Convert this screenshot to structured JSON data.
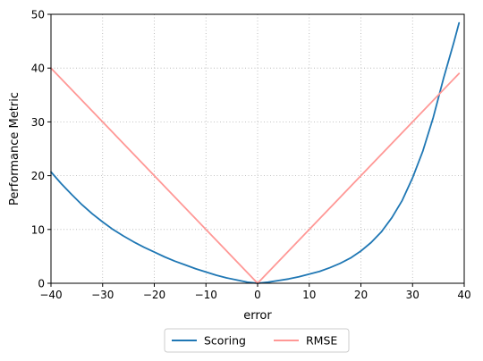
{
  "chart_data": {
    "type": "line",
    "xlabel": "error",
    "ylabel": "Performance Metric",
    "xlim": [
      -40,
      40
    ],
    "ylim": [
      0,
      50
    ],
    "xticks": [
      -40,
      -30,
      -20,
      -10,
      0,
      10,
      20,
      30,
      40
    ],
    "yticks": [
      0,
      10,
      20,
      30,
      40,
      50
    ],
    "grid": true,
    "grid_style": "dotted",
    "legend_position": "bottom-center-outside",
    "series": [
      {
        "name": "Scoring",
        "color": "#1f77b4",
        "x": [
          -40,
          -38,
          -36,
          -34,
          -32,
          -30,
          -28,
          -26,
          -24,
          -22,
          -20,
          -18,
          -16,
          -14,
          -12,
          -10,
          -8,
          -6,
          -4,
          -2,
          0,
          2,
          4,
          6,
          8,
          10,
          12,
          14,
          16,
          18,
          20,
          22,
          24,
          26,
          28,
          30,
          32,
          34,
          36,
          38,
          39
        ],
        "y": [
          20.7,
          18.5,
          16.5,
          14.6,
          12.9,
          11.4,
          10.0,
          8.8,
          7.7,
          6.7,
          5.8,
          4.9,
          4.1,
          3.4,
          2.7,
          2.1,
          1.5,
          1.0,
          0.6,
          0.2,
          0.0,
          0.2,
          0.5,
          0.8,
          1.2,
          1.7,
          2.2,
          2.9,
          3.7,
          4.7,
          6.0,
          7.6,
          9.6,
          12.2,
          15.4,
          19.6,
          24.6,
          30.8,
          38.1,
          44.8,
          48.4
        ]
      },
      {
        "name": "RMSE",
        "color": "#ff9896",
        "x": [
          -40,
          0,
          39
        ],
        "y": [
          40,
          0,
          39
        ]
      }
    ]
  }
}
